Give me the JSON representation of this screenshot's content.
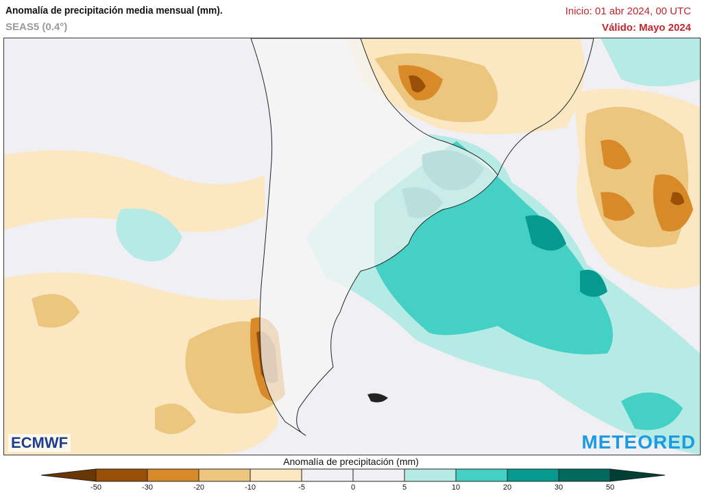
{
  "header": {
    "title": "Anomalía de precipitación media mensual (mm).",
    "model": "SEAS5 (0.4°)",
    "init": "Inicio: 01 abr 2024, 00 UTC",
    "valid": "Válido: Mayo 2024"
  },
  "logos": {
    "left": "ECMWF",
    "right": "METEORED"
  },
  "colorbar": {
    "title": "Anomalía de precipitación (mm)",
    "ticks": [
      "-50",
      "-30",
      "-20",
      "-10",
      "-5",
      "0",
      "5",
      "10",
      "20",
      "30",
      "50"
    ],
    "colors": [
      "#6a3602",
      "#9a4f06",
      "#d88a28",
      "#ecc67e",
      "#fbe8c3",
      "#efeff4",
      "#efeff4",
      "#b5ebe4",
      "#44d0c4",
      "#06998f",
      "#03695f",
      "#003f35"
    ]
  },
  "map": {
    "ocean_background": "#efeff4",
    "land": "#f5f5f5",
    "region": "South America (southern cone)"
  }
}
